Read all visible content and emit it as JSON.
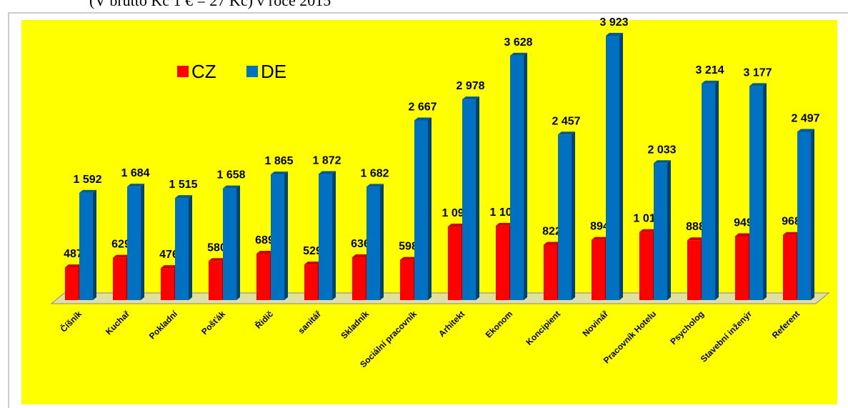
{
  "header": "(V brutto Kč 1 € = 27 Kč) v roce 2015",
  "chart_data": {
    "type": "bar",
    "categories": [
      "Číšník",
      "Kuchař",
      "Pokladní",
      "Pošťák",
      "Řidič",
      "sanitář",
      "Skladník",
      "Sociální pracovník",
      "Arhitekt",
      "Ekonom",
      "Koncipient",
      "Novinář",
      "Pracovník Hotelu",
      "Psycholog",
      "Stavební inženýr",
      "Referent"
    ],
    "series": [
      {
        "name": "CZ",
        "color": "#ff0000",
        "values": [
          487,
          629,
          476,
          580,
          689,
          529,
          636,
          598,
          1092,
          1104,
          822,
          894,
          1010,
          888,
          949,
          968
        ],
        "value_labels": [
          "487",
          "629",
          "476",
          "580",
          "689",
          "529",
          "636",
          "598",
          "1 092",
          "1 104",
          "822",
          "894",
          "1 010",
          "888",
          "949",
          "968"
        ]
      },
      {
        "name": "DE",
        "color": "#0070c0",
        "values": [
          1592,
          1684,
          1515,
          1658,
          1865,
          1872,
          1682,
          2667,
          2978,
          3628,
          2457,
          3923,
          2033,
          3214,
          3177,
          2497
        ],
        "value_labels": [
          "1 592",
          "1 684",
          "1 515",
          "1 658",
          "1 865",
          "1 872",
          "1 682",
          "2 667",
          "2 978",
          "3 628",
          "2 457",
          "3 923",
          "2 033",
          "3 214",
          "3 177",
          "2 497"
        ]
      }
    ],
    "legend": "top-left",
    "background": "#ffff00"
  }
}
